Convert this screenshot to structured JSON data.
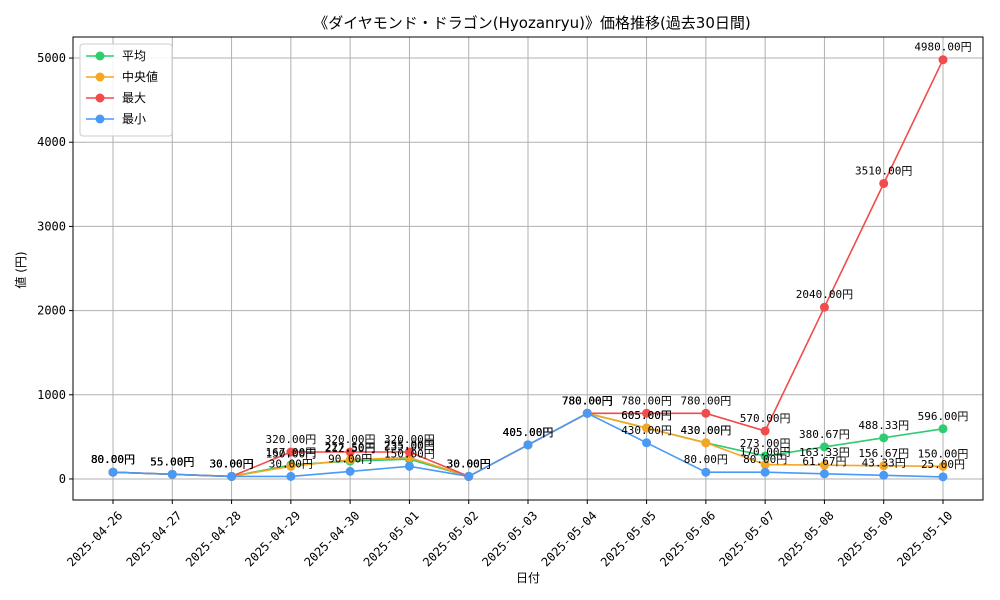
{
  "chart_data": {
    "type": "line",
    "title": "《ダイヤモンド・ドラゴン(Hyozanryu)》価格推移(過去30日間)",
    "xlabel": "日付",
    "ylabel": "値 (円)",
    "ylim": [
      -250,
      5250
    ],
    "yticks": [
      0,
      1000,
      2000,
      3000,
      4000,
      5000
    ],
    "grid": true,
    "legend_position": "top-left",
    "categories": [
      "2025-04-26",
      "2025-04-27",
      "2025-04-28",
      "2025-04-29",
      "2025-04-30",
      "2025-05-01",
      "2025-05-02",
      "2025-05-03",
      "2025-05-04",
      "2025-05-05",
      "2025-05-06",
      "2025-05-07",
      "2025-05-08",
      "2025-05-09",
      "2025-05-10"
    ],
    "series": [
      {
        "name": "平均",
        "color": "#2ecc71",
        "values": [
          80,
          55,
          30,
          167,
          212.5,
          235,
          30,
          405,
          780,
          605,
          430,
          273,
          380.67,
          488.33,
          596
        ],
        "labels": [
          "80.00円",
          "55.00円",
          "30.00円",
          "167.00円",
          "212.50円",
          "235.00円",
          "30.00円",
          "405.00円",
          "780.00円",
          "605.00円",
          "430.00円",
          "273.00円",
          "380.67円",
          "488.33円",
          "596.00円"
        ]
      },
      {
        "name": "中央値",
        "color": "#f5a623",
        "values": [
          80,
          55,
          30,
          150,
          227.5,
          255,
          30,
          405,
          780,
          605,
          430,
          170,
          163.33,
          156.67,
          150
        ],
        "labels": [
          "80.00円",
          "55.00円",
          "30.00円",
          "150.00円",
          "227.50円",
          "255.00円",
          "30.00円",
          "405.00円",
          "780.00円",
          "605.00円",
          "430.00円",
          "170.00円",
          "163.33円",
          "156.67円",
          "150.00円"
        ]
      },
      {
        "name": "最大",
        "color": "#f24b4b",
        "values": [
          80,
          55,
          30,
          320,
          320,
          320,
          30,
          405,
          780,
          780,
          780,
          570,
          2040,
          3510,
          4980
        ],
        "labels": [
          "80.00円",
          "55.00円",
          "30.00円",
          "320.00円",
          "320.00円",
          "320.00円",
          "30.00円",
          "405.00円",
          "780.00円",
          "780.00円",
          "780.00円",
          "570.00円",
          "2040.00円",
          "3510.00円",
          "4980.00円"
        ]
      },
      {
        "name": "最小",
        "color": "#4a9af5",
        "values": [
          80,
          55,
          30,
          30,
          90,
          150,
          30,
          405,
          780,
          430,
          80,
          80,
          61.67,
          43.33,
          25
        ],
        "labels": [
          "80.00円",
          "55.00円",
          "30.00円",
          "30.00円",
          "90.00円",
          "150.00円",
          "30.00円",
          "405.00円",
          "780.00円",
          "430.00円",
          "80.00円",
          "80.00円",
          "61.67円",
          "43.33円",
          "25.00円"
        ]
      }
    ]
  }
}
